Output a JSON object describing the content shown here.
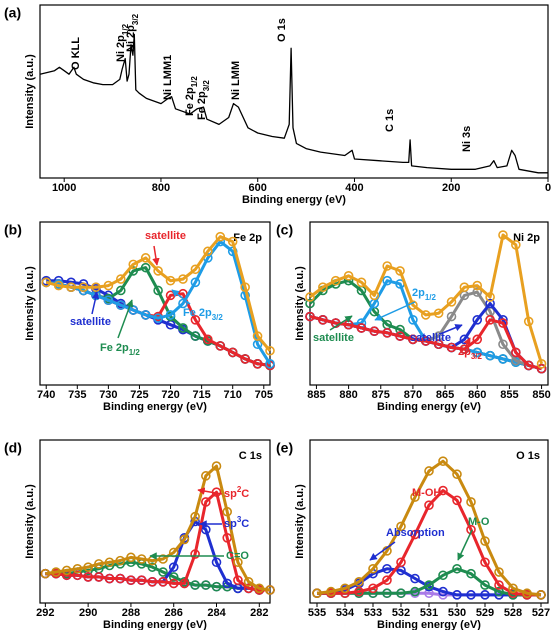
{
  "chart_data": [
    {
      "type": "line",
      "panel_label": "(a)",
      "xlabel": "Binding energy (eV)",
      "ylabel": "Intensity (a.u.)",
      "xlim": [
        1050,
        0
      ],
      "ylim": [
        0,
        100
      ],
      "xticks": [
        1000,
        800,
        600,
        400,
        200,
        0
      ],
      "x": [
        1050,
        1020,
        1010,
        1000,
        990,
        980,
        975,
        960,
        940,
        920,
        900,
        885,
        880,
        874,
        870,
        866,
        862,
        858,
        855,
        852,
        845,
        830,
        800,
        785,
        778,
        770,
        740,
        725,
        712,
        705,
        680,
        660,
        650,
        640,
        620,
        600,
        570,
        545,
        535,
        531,
        527,
        520,
        500,
        470,
        420,
        405,
        400,
        350,
        300,
        288,
        285,
        282,
        250,
        200,
        150,
        120,
        112,
        105,
        85,
        75,
        68,
        60,
        20,
        0
      ],
      "series": [
        {
          "color": "#000000",
          "marker": "none",
          "values": [
            60,
            62,
            64,
            62,
            60,
            64,
            60,
            57,
            55,
            54,
            54,
            57,
            63,
            69,
            56,
            60,
            77,
            71,
            83,
            51,
            49,
            46,
            43,
            46,
            47,
            40,
            37,
            40,
            41,
            34,
            31,
            35,
            43,
            41,
            29,
            26,
            24,
            23,
            31,
            75,
            29,
            20,
            17,
            15,
            13,
            16,
            11,
            10,
            9,
            9,
            22,
            7,
            6,
            5,
            5,
            7,
            10,
            6,
            7,
            16,
            13,
            5,
            3,
            3
          ]
        }
      ],
      "annotations": [
        {
          "text": "O KLL",
          "color": "#000000"
        },
        {
          "text": "Ni 2p",
          "sub": "1/2",
          "color": "#000000"
        },
        {
          "text": "Ni 2p",
          "sub": "3/2",
          "color": "#000000"
        },
        {
          "text": "Ni LMM1",
          "color": "#000000"
        },
        {
          "text": "Fe 2p",
          "sub": "1/2",
          "color": "#000000"
        },
        {
          "text": "Fe 2p",
          "sub": "3/2",
          "color": "#000000"
        },
        {
          "text": "Ni LMM",
          "color": "#000000"
        },
        {
          "text": "O 1s",
          "color": "#000000"
        },
        {
          "text": "C 1s",
          "color": "#000000"
        },
        {
          "text": "Ni 3s",
          "color": "#000000"
        }
      ]
    },
    {
      "type": "line",
      "panel_label": "(b)",
      "title": "Fe 2p",
      "xlabel": "Binding energy (eV)",
      "ylabel": "Intensity (a.u.)",
      "xlim": [
        741,
        704
      ],
      "ylim": [
        0,
        100
      ],
      "xticks": [
        740,
        735,
        730,
        725,
        720,
        715,
        710,
        705
      ],
      "x": [
        740,
        738,
        736,
        734,
        732,
        730,
        728,
        726,
        724,
        722,
        720,
        718,
        716,
        714,
        712,
        710,
        708,
        706,
        704
      ],
      "series": [
        {
          "color": "#A97BE8",
          "marker": "o",
          "values": [
            63,
            62,
            60,
            58,
            55,
            52,
            49,
            46,
            43,
            40,
            37,
            34,
            30,
            27,
            24,
            20,
            16,
            13,
            12
          ]
        },
        {
          "color": "#1F2FD0",
          "marker": "o",
          "values": [
            64,
            64,
            63,
            62,
            59,
            55,
            50,
            46,
            43,
            40,
            37,
            34,
            30,
            27,
            24,
            20,
            16,
            13,
            12
          ]
        },
        {
          "color": "#1E8C50",
          "marker": "o",
          "values": [
            63,
            62,
            60,
            58,
            55,
            53,
            58,
            70,
            72,
            58,
            42,
            35,
            30,
            27,
            24,
            20,
            16,
            13,
            12
          ]
        },
        {
          "color": "#E8262C",
          "marker": "o",
          "values": [
            63,
            62,
            60,
            58,
            55,
            52,
            49,
            46,
            43,
            42,
            55,
            56,
            40,
            28,
            24,
            20,
            16,
            13,
            12
          ]
        },
        {
          "color": "#1E9CE6",
          "marker": "o",
          "values": [
            63,
            62,
            60,
            58,
            55,
            52,
            49,
            46,
            43,
            41,
            43,
            50,
            63,
            78,
            88,
            82,
            55,
            25,
            13
          ]
        },
        {
          "color": "#E8A020",
          "marker": "o",
          "values": [
            63,
            61,
            60,
            60,
            60,
            61,
            65,
            74,
            78,
            70,
            64,
            65,
            71,
            82,
            91,
            88,
            60,
            30,
            21
          ]
        }
      ],
      "annotations": [
        {
          "text": "satellite",
          "color": "#E8262C"
        },
        {
          "text": "Fe 2p",
          "sub": "3/2",
          "color": "#1E9CE6"
        },
        {
          "text": "satellite",
          "color": "#1F2FD0"
        },
        {
          "text": "Fe 2p",
          "sub": "1/2",
          "color": "#1E8C50"
        }
      ]
    },
    {
      "type": "line",
      "panel_label": "(c)",
      "title": "Ni 2p",
      "xlabel": "Binding energy (eV)",
      "ylabel": "Intensity (a.u.)",
      "xlim": [
        886,
        849
      ],
      "ylim": [
        0,
        100
      ],
      "xticks": [
        885,
        880,
        875,
        870,
        865,
        860,
        855,
        850
      ],
      "x": [
        886,
        884,
        882,
        880,
        878,
        876,
        874,
        872,
        870,
        868,
        866,
        864,
        862,
        860,
        858,
        856,
        854,
        852,
        850
      ],
      "series": [
        {
          "color": "#A97BE8",
          "marker": "o",
          "values": [
            42,
            40,
            38,
            37,
            35,
            33,
            32,
            30,
            28,
            27,
            25,
            23,
            22,
            20,
            18,
            16,
            14,
            12,
            10
          ]
        },
        {
          "color": "#1E8C50",
          "marker": "o",
          "values": [
            50,
            58,
            62,
            64,
            58,
            45,
            37,
            34,
            28,
            27,
            25,
            23,
            22,
            20,
            18,
            16,
            14,
            12,
            10
          ]
        },
        {
          "color": "#1E9CE6",
          "marker": "o",
          "values": [
            42,
            40,
            38,
            37,
            38,
            50,
            64,
            62,
            40,
            27,
            25,
            23,
            22,
            20,
            18,
            16,
            14,
            12,
            10
          ]
        },
        {
          "color": "#8A8A8A",
          "marker": "o",
          "values": [
            42,
            40,
            38,
            37,
            35,
            33,
            32,
            30,
            28,
            27,
            30,
            42,
            55,
            57,
            45,
            25,
            15,
            12,
            10
          ]
        },
        {
          "color": "#1F2FD0",
          "marker": "o",
          "values": [
            42,
            40,
            38,
            37,
            35,
            33,
            32,
            30,
            28,
            27,
            25,
            23,
            28,
            40,
            50,
            40,
            20,
            12,
            10
          ]
        },
        {
          "color": "#E8262C",
          "marker": "o",
          "values": [
            42,
            40,
            38,
            37,
            35,
            33,
            32,
            30,
            28,
            27,
            25,
            23,
            22,
            28,
            40,
            38,
            20,
            12,
            10
          ]
        },
        {
          "color": "#E8A020",
          "marker": "o",
          "values": [
            54,
            60,
            64,
            67,
            63,
            55,
            73,
            70,
            49,
            43,
            44,
            51,
            60,
            61,
            54,
            92,
            86,
            39,
            13
          ]
        }
      ],
      "annotations": [
        {
          "text": "2p",
          "sub": "1/2",
          "color": "#1E9CE6"
        },
        {
          "text": "satellite",
          "color": "#1E8C50"
        },
        {
          "text": "satellite",
          "color": "#1F2FD0"
        },
        {
          "text": "2p",
          "sub": "3/2",
          "color": "#E8262C"
        }
      ]
    },
    {
      "type": "line",
      "panel_label": "(d)",
      "title": "C 1s",
      "xlabel": "Binding energy (eV)",
      "ylabel": "Intensity (a.u.)",
      "xlim": [
        292.25,
        281.5
      ],
      "ylim": [
        0,
        100
      ],
      "xticks": [
        292,
        290,
        288,
        286,
        284,
        282
      ],
      "x": [
        292,
        291.5,
        291,
        290.5,
        290,
        289.5,
        289,
        288.5,
        288,
        287.5,
        287,
        286.5,
        286,
        285.5,
        285,
        284.5,
        284,
        283.5,
        283,
        282.5,
        282,
        281.5
      ],
      "series": [
        {
          "color": "#A97BE8",
          "marker": "o",
          "values": [
            18,
            18,
            17,
            17,
            16,
            16,
            15,
            15,
            14,
            14,
            13,
            13,
            12,
            12,
            11,
            11,
            10,
            10,
            9,
            9,
            8,
            8
          ]
        },
        {
          "color": "#1E8C50",
          "marker": "o",
          "values": [
            18,
            18,
            18,
            19,
            20,
            21,
            23,
            24,
            25,
            24,
            22,
            19,
            16,
            13,
            11,
            11,
            10,
            10,
            9,
            9,
            8,
            8
          ]
        },
        {
          "color": "#1F2FD0",
          "marker": "o",
          "values": [
            18,
            18,
            17,
            17,
            16,
            16,
            15,
            15,
            14,
            14,
            13,
            13,
            22,
            40,
            50,
            45,
            25,
            12,
            9,
            9,
            8,
            8
          ]
        },
        {
          "color": "#E8262C",
          "marker": "o",
          "values": [
            18,
            18,
            17,
            17,
            16,
            16,
            15,
            15,
            14,
            14,
            13,
            13,
            12,
            12,
            30,
            62,
            68,
            40,
            14,
            9,
            8,
            8
          ]
        },
        {
          "color": "#C98A10",
          "marker": "o",
          "values": [
            18,
            19,
            20,
            21,
            22,
            24,
            25,
            26,
            28,
            27,
            26,
            27,
            31,
            39,
            53,
            78,
            84,
            56,
            25,
            13,
            9,
            8
          ]
        }
      ],
      "annotations": [
        {
          "text": "sp",
          "sup": "2",
          "tail": "C",
          "color": "#E8262C"
        },
        {
          "text": "sp",
          "sup": "3",
          "tail": "C",
          "color": "#1F2FD0"
        },
        {
          "text": "C=O",
          "color": "#1E8C50"
        }
      ]
    },
    {
      "type": "line",
      "panel_label": "(e)",
      "title": "O 1s",
      "xlabel": "Binding energy (eV)",
      "ylabel": "Intensity (a.u.)",
      "xlim": [
        535.25,
        526.75
      ],
      "ylim": [
        0,
        100
      ],
      "xticks": [
        535,
        534,
        533,
        532,
        531,
        530,
        529,
        528,
        527
      ],
      "x": [
        535,
        534.5,
        534,
        533.5,
        533,
        532.5,
        532,
        531.5,
        531,
        530.5,
        530,
        529.5,
        529,
        528.5,
        528,
        527.5,
        527
      ],
      "series": [
        {
          "color": "#A97BE8",
          "marker": "o",
          "values": [
            6,
            6,
            6,
            6,
            6,
            6,
            6,
            6,
            6,
            5,
            5,
            5,
            5,
            5,
            5,
            5,
            5
          ]
        },
        {
          "color": "#1F2FD0",
          "marker": "o",
          "values": [
            6,
            6,
            8,
            12,
            18,
            21,
            20,
            15,
            10,
            7,
            5,
            5,
            5,
            5,
            5,
            5,
            5
          ]
        },
        {
          "color": "#1E8C50",
          "marker": "o",
          "values": [
            6,
            6,
            6,
            6,
            6,
            6,
            6,
            7,
            11,
            17,
            21,
            18,
            11,
            7,
            5,
            5,
            5
          ]
        },
        {
          "color": "#E8262C",
          "marker": "o",
          "values": [
            6,
            6,
            6,
            7,
            9,
            14,
            25,
            42,
            60,
            69,
            63,
            45,
            25,
            11,
            6,
            5,
            5
          ]
        },
        {
          "color": "#C98A10",
          "marker": "o",
          "values": [
            6,
            7,
            9,
            13,
            21,
            32,
            47,
            65,
            81,
            87,
            79,
            62,
            38,
            19,
            9,
            6,
            5
          ]
        }
      ],
      "annotations": [
        {
          "text": "M-OH",
          "color": "#E8262C"
        },
        {
          "text": "Absorption",
          "color": "#1F2FD0"
        },
        {
          "text": "M-O",
          "color": "#1E8C50"
        }
      ]
    }
  ]
}
